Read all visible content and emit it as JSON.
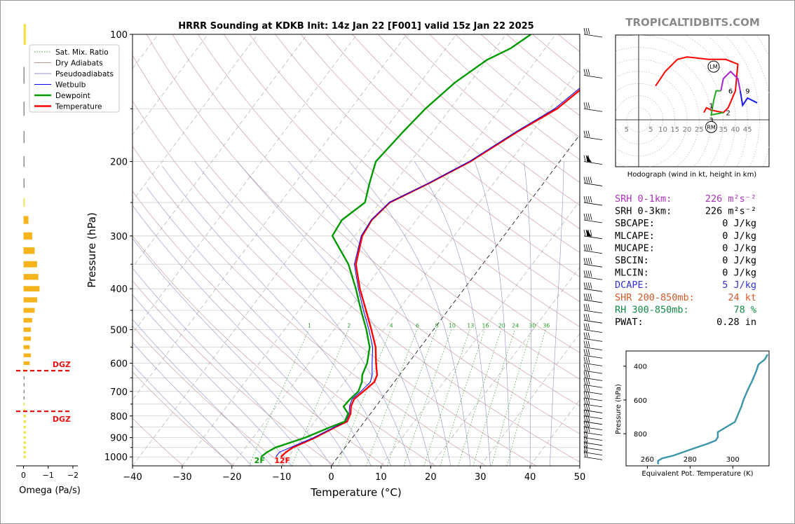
{
  "chart_data": [
    {
      "type": "line",
      "title": "HRRR Sounding at KDKB Init: 14z Jan 22 [F001] valid 15z Jan 22 2025",
      "xlabel": "Temperature (°C)",
      "ylabel": "Pressure (hPa)",
      "xlim": [
        -40,
        50
      ],
      "ylim": [
        1050,
        100
      ],
      "y_scale": "log",
      "xticks": [
        "−40",
        "−30",
        "−20",
        "−10",
        "0",
        "10",
        "20",
        "30",
        "40",
        "50"
      ],
      "yticks": [
        "1000",
        "900",
        "800",
        "700",
        "600",
        "500",
        "400",
        "300",
        "200",
        "100"
      ],
      "grid": true,
      "legend_position": "top-left",
      "legend": [
        {
          "name": "Sat. Mix. Ratio",
          "color": "#2ca02c",
          "style": "dotted"
        },
        {
          "name": "Dry Adiabats",
          "color": "#c79090",
          "style": "solid"
        },
        {
          "name": "Pseudoadiabats",
          "color": "#9090c8",
          "style": "solid"
        },
        {
          "name": "Wetbulb",
          "color": "#0000ee",
          "style": "solid"
        },
        {
          "name": "Dewpoint",
          "color": "#009900",
          "style": "solid"
        },
        {
          "name": "Temperature",
          "color": "#ff0000",
          "style": "solid"
        }
      ],
      "mixing_ratio_labels": [
        "1",
        "2",
        "4",
        "6",
        "8",
        "10",
        "13",
        "16",
        "20",
        "24",
        "30",
        "36"
      ],
      "series": [
        {
          "name": "Temperature",
          "color": "#ff0000",
          "points": [
            [
              -11.5,
              1000
            ],
            [
              -11.2,
              975
            ],
            [
              -10.5,
              950
            ],
            [
              -7.5,
              900
            ],
            [
              -5,
              850
            ],
            [
              -3.5,
              825
            ],
            [
              -4,
              790
            ],
            [
              -5,
              760
            ],
            [
              -5.5,
              730
            ],
            [
              -4.8,
              700
            ],
            [
              -4,
              665
            ],
            [
              -4.5,
              640
            ],
            [
              -6.5,
              600
            ],
            [
              -9,
              550
            ],
            [
              -12.5,
              500
            ],
            [
              -16.5,
              450
            ],
            [
              -21,
              400
            ],
            [
              -25.5,
              350
            ],
            [
              -28.5,
              300
            ],
            [
              -29,
              275
            ],
            [
              -28,
              250
            ],
            [
              -23,
              225
            ],
            [
              -18,
              200
            ],
            [
              -13,
              170
            ],
            [
              -8.5,
              150
            ],
            [
              -6,
              130
            ],
            [
              -4.5,
              115
            ],
            [
              -2.5,
              108
            ],
            [
              -1.5,
              100
            ]
          ]
        },
        {
          "name": "Wetbulb",
          "color": "#0000ee",
          "points": [
            [
              -12.5,
              1000
            ],
            [
              -12.5,
              975
            ],
            [
              -11,
              950
            ],
            [
              -7.8,
              900
            ],
            [
              -5.2,
              850
            ],
            [
              -3.8,
              825
            ],
            [
              -4.3,
              790
            ],
            [
              -5.3,
              760
            ],
            [
              -5.9,
              730
            ],
            [
              -5.3,
              700
            ],
            [
              -4.8,
              665
            ],
            [
              -5.5,
              640
            ],
            [
              -7.3,
              600
            ],
            [
              -9.6,
              550
            ],
            [
              -13,
              500
            ],
            [
              -17,
              450
            ],
            [
              -21.3,
              400
            ],
            [
              -25.8,
              350
            ],
            [
              -28.7,
              300
            ],
            [
              -29.1,
              275
            ],
            [
              -28.1,
              250
            ],
            [
              -23.1,
              225
            ],
            [
              -18.2,
              200
            ],
            [
              -13.3,
              170
            ],
            [
              -9,
              150
            ],
            [
              -6.5,
              130
            ],
            [
              -5,
              115
            ],
            [
              -3,
              108
            ],
            [
              -2,
              100
            ]
          ]
        },
        {
          "name": "Dewpoint",
          "color": "#009900",
          "points": [
            [
              -15.5,
              1000
            ],
            [
              -15,
              975
            ],
            [
              -14,
              950
            ],
            [
              -9.5,
              900
            ],
            [
              -6,
              850
            ],
            [
              -4,
              825
            ],
            [
              -4.5,
              790
            ],
            [
              -6.5,
              760
            ],
            [
              -6.3,
              730
            ],
            [
              -5.8,
              700
            ],
            [
              -6.5,
              665
            ],
            [
              -7.5,
              640
            ],
            [
              -8.3,
              600
            ],
            [
              -10.2,
              550
            ],
            [
              -13.5,
              500
            ],
            [
              -17.5,
              450
            ],
            [
              -21.8,
              400
            ],
            [
              -27,
              350
            ],
            [
              -34.5,
              300
            ],
            [
              -35,
              275
            ],
            [
              -33,
              250
            ],
            [
              -35,
              225
            ],
            [
              -37,
              200
            ],
            [
              -36,
              170
            ],
            [
              -35,
              150
            ],
            [
              -33,
              130
            ],
            [
              -30,
              115
            ],
            [
              -27,
              108
            ],
            [
              -25,
              100
            ]
          ]
        }
      ],
      "annotations": [
        {
          "text": "2F",
          "color": "#009900"
        },
        {
          "text": "12F",
          "color": "#ff0000"
        }
      ]
    },
    {
      "type": "bar",
      "xlabel": "Omega (Pa/s)",
      "xticks": [
        "0",
        "−1",
        "−2"
      ],
      "xlim": [
        0.3,
        -2.2
      ],
      "dgz_label": "DGZ",
      "dgz_levels_hpa": [
        625,
        780
      ],
      "levels_hpa": [
        1000,
        975,
        950,
        925,
        900,
        875,
        850,
        825,
        800,
        775,
        750,
        725,
        700,
        675,
        650,
        625,
        600,
        575,
        550,
        525,
        500,
        475,
        450,
        425,
        400,
        375,
        350,
        325,
        300,
        275,
        250,
        225,
        200,
        175,
        150,
        125,
        100
      ],
      "values": [
        -0.1,
        -0.1,
        -0.1,
        -0.1,
        -0.1,
        -0.1,
        -0.1,
        -0.1,
        -0.1,
        -0.08,
        -0.05,
        0,
        0,
        0,
        0,
        -0.05,
        -0.25,
        -0.3,
        -0.25,
        -0.3,
        -0.3,
        -0.35,
        -0.45,
        -0.55,
        -0.65,
        -0.6,
        -0.55,
        -0.45,
        -0.35,
        -0.2,
        -0.05,
        0,
        0,
        0,
        0,
        0,
        -0.1
      ]
    },
    {
      "type": "line",
      "title": "Hodograph (wind in kt, height in km)",
      "ring_labels": [
        "5",
        "5",
        "10",
        "15",
        "20",
        "25",
        "30",
        "35",
        "40",
        "45"
      ],
      "markers": [
        "LM",
        "RM"
      ],
      "height_labels": [
        "1",
        "2",
        "3",
        "6",
        "9"
      ],
      "series": [
        {
          "name": "0-3 km",
          "color": "#ff0000",
          "points": [
            [
              27,
              3
            ],
            [
              28,
              5
            ],
            [
              30,
              4
            ],
            [
              35,
              3
            ],
            [
              37,
              5
            ],
            [
              40,
              12
            ],
            [
              41,
              23
            ],
            [
              36,
              25
            ],
            [
              29,
              25
            ],
            [
              20,
              26
            ],
            [
              16,
              25
            ],
            [
              11,
              20
            ],
            [
              7,
              14
            ]
          ]
        },
        {
          "name": "3-6 km",
          "color": "#22aa22",
          "points": [
            [
              35,
              3
            ],
            [
              30,
              2
            ],
            [
              31,
              8
            ],
            [
              32,
              12
            ],
            [
              34,
              12
            ]
          ]
        },
        {
          "name": "6-9 km",
          "color": "#aa22cc",
          "points": [
            [
              34,
              12
            ],
            [
              35,
              17
            ],
            [
              38,
              20
            ],
            [
              41,
              17
            ],
            [
              42,
              12
            ]
          ]
        },
        {
          "name": "9+ km",
          "color": "#1a1aee",
          "points": [
            [
              42,
              12
            ],
            [
              43,
              6
            ],
            [
              45,
              9
            ],
            [
              49,
              7
            ]
          ]
        }
      ]
    },
    {
      "type": "line",
      "xlabel": "Equivalent Pot. Temperature (K)",
      "ylabel": "Pressure (hPa)",
      "xlim": [
        250,
        317
      ],
      "ylim": [
        990,
        310
      ],
      "xticks": [
        "260",
        "280",
        "300"
      ],
      "yticks": [
        "400",
        "600",
        "800"
      ],
      "series": [
        {
          "name": "Theta-e",
          "color": "#3c95a8",
          "points": [
            [
              265,
              980
            ],
            [
              265,
              960
            ],
            [
              267,
              945
            ],
            [
              272,
              930
            ],
            [
              281,
              890
            ],
            [
              288,
              860
            ],
            [
              292,
              840
            ],
            [
              293,
              820
            ],
            [
              293,
              790
            ],
            [
              297,
              760
            ],
            [
              301,
              730
            ],
            [
              302,
              700
            ],
            [
              304,
              640
            ],
            [
              305,
              600
            ],
            [
              307,
              540
            ],
            [
              309,
              490
            ],
            [
              311,
              430
            ],
            [
              312,
              390
            ],
            [
              315,
              360
            ],
            [
              318,
              330
            ]
          ]
        }
      ]
    }
  ],
  "site": {
    "label": "TROPICALTIDBITS.COM"
  },
  "indices": [
    {
      "label": "SRH 0-1km:",
      "value": "226 m²s⁻²",
      "color": "#aa33bb"
    },
    {
      "label": "SRH 0-3km:",
      "value": "226 m²s⁻²",
      "color": "#000000"
    },
    {
      "label": "SBCAPE:",
      "value": "0 J/kg",
      "color": "#000000"
    },
    {
      "label": "MLCAPE:",
      "value": "0 J/kg",
      "color": "#000000"
    },
    {
      "label": "MUCAPE:",
      "value": "0 J/kg",
      "color": "#000000"
    },
    {
      "label": "SBCIN:",
      "value": "0 J/kg",
      "color": "#000000"
    },
    {
      "label": "MLCIN:",
      "value": "0 J/kg",
      "color": "#000000"
    },
    {
      "label": "DCAPE:",
      "value": "5 J/kg",
      "color": "#3333cc"
    },
    {
      "label": "SHR 200-850mb:",
      "value": "24 kt",
      "color": "#d45a2a"
    },
    {
      "label": "RH 300-850mb:",
      "value": "78 %",
      "color": "#118844"
    },
    {
      "label": "PWAT:",
      "value": "0.28 in",
      "color": "#000000"
    }
  ]
}
